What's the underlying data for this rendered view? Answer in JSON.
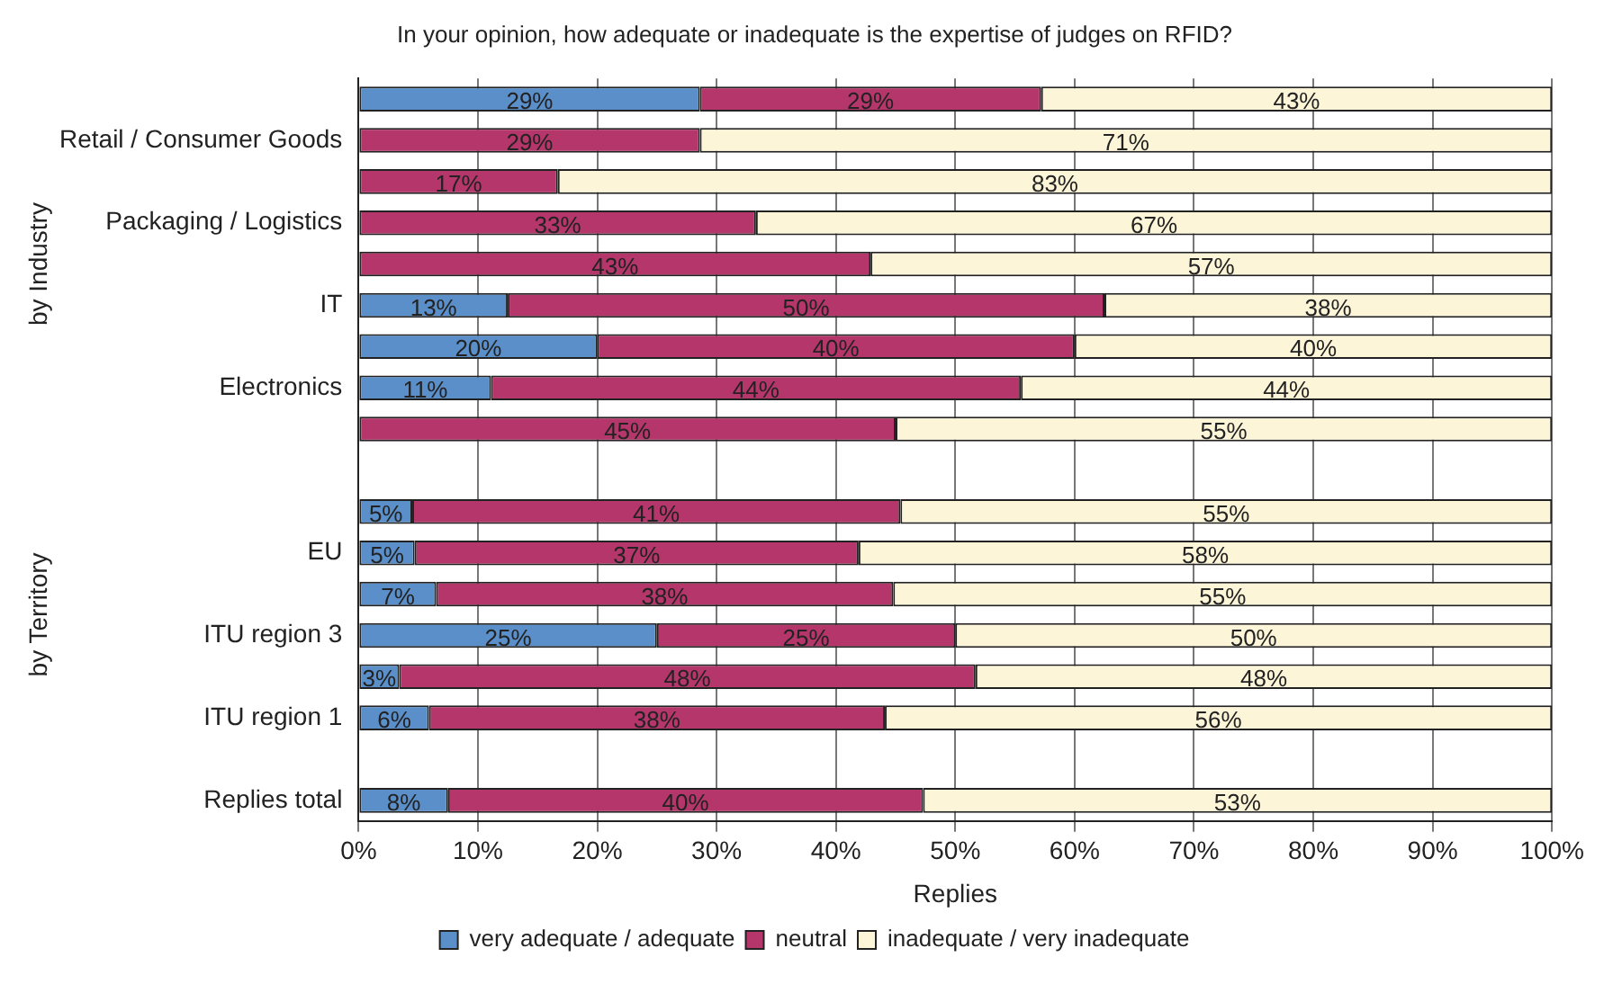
{
  "chart_data": {
    "type": "bar",
    "orientation": "horizontal",
    "stacked": true,
    "title": "In your opinion, how adequate or inadequate is the expertise of judges on RFID?",
    "xlabel": "Replies",
    "categories": [
      null,
      "Retail / Consumer Goods",
      null,
      "Packaging / Logistics",
      null,
      "IT",
      null,
      "Electronics",
      null,
      null,
      null,
      "EU",
      null,
      "ITU region 3",
      null,
      "ITU region 1",
      null,
      "Replies total"
    ],
    "series": [
      {
        "name": "very adequate / adequate",
        "color": "#5b8fc9",
        "values": [
          28.6,
          null,
          null,
          null,
          null,
          12.5,
          20,
          11.1,
          null,
          null,
          4.5,
          4.7,
          6.5,
          25,
          3.4,
          5.9,
          null,
          7.5
        ],
        "value_labels": [
          "29%",
          null,
          null,
          null,
          null,
          "13%",
          "20%",
          "11%",
          null,
          null,
          "5%",
          "5%",
          "7%",
          "25%",
          "3%",
          "6%",
          null,
          "8%"
        ]
      },
      {
        "name": "neutral",
        "color": "#b5366a",
        "values": [
          28.6,
          28.6,
          16.7,
          33.3,
          42.9,
          50,
          40,
          44.4,
          45,
          null,
          40.9,
          37.2,
          38.3,
          25,
          48.3,
          38.2,
          null,
          39.8
        ],
        "value_labels": [
          "29%",
          "29%",
          "17%",
          "33%",
          "43%",
          "50%",
          "40%",
          "44%",
          "45%",
          null,
          "41%",
          "37%",
          "38%",
          "25%",
          "48%",
          "38%",
          null,
          "40%"
        ]
      },
      {
        "name": "inadequate / very inadequate",
        "color": "#fdf5d8",
        "values": [
          42.8,
          71.4,
          83.3,
          66.7,
          57.1,
          37.5,
          40,
          44.5,
          55,
          null,
          54.6,
          58.1,
          55.2,
          50,
          48.3,
          55.9,
          null,
          52.7
        ],
        "value_labels": [
          "43%",
          "71%",
          "83%",
          "67%",
          "57%",
          "38%",
          "40%",
          "44%",
          "55%",
          null,
          "55%",
          "58%",
          "55%",
          "50%",
          "48%",
          "56%",
          null,
          "53%"
        ]
      }
    ],
    "xlim": [
      0,
      100
    ],
    "xticks": [
      {
        "value": 0,
        "label": "0%"
      },
      {
        "value": 10,
        "label": "10%"
      },
      {
        "value": 20,
        "label": "20%"
      },
      {
        "value": 30,
        "label": "30%"
      },
      {
        "value": 40,
        "label": "40%"
      },
      {
        "value": 50,
        "label": "50%"
      },
      {
        "value": 60,
        "label": "60%"
      },
      {
        "value": 70,
        "label": "70%"
      },
      {
        "value": 80,
        "label": "80%"
      },
      {
        "value": 90,
        "label": "90%"
      },
      {
        "value": 100,
        "label": "100%"
      }
    ],
    "grid": "x",
    "legend": "bottom",
    "annotations": [
      "by Industry",
      "by Territory"
    ]
  }
}
